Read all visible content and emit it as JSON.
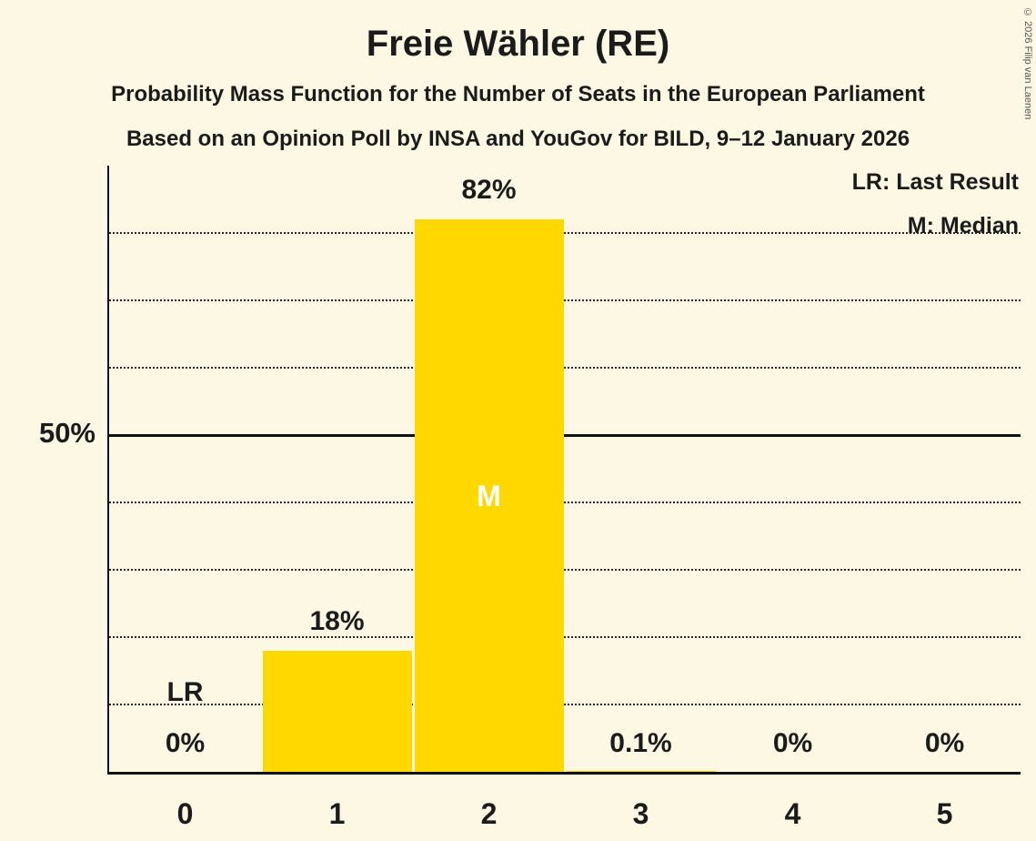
{
  "page": {
    "background": "#FCF8E3",
    "copyright": "© 2026 Filip van Laenen"
  },
  "header": {
    "title": "Freie Wähler (RE)",
    "subtitle1": "Probability Mass Function for the Number of Seats in the European Parliament",
    "subtitle2": "Based on an Opinion Poll by INSA and YouGov for BILD, 9–12 January 2026"
  },
  "legend": {
    "lr": "LR: Last Result",
    "m": "M: Median"
  },
  "chart_data": {
    "type": "bar",
    "title": "Freie Wähler (RE)",
    "categories": [
      "0",
      "1",
      "2",
      "3",
      "4",
      "5"
    ],
    "values": [
      0,
      18,
      82,
      0.1,
      0,
      0
    ],
    "value_labels": [
      "0%",
      "18%",
      "82%",
      "0.1%",
      "0%",
      "0%"
    ],
    "ylim": [
      0,
      90
    ],
    "y_tick": {
      "value": 50,
      "label": "50%"
    },
    "gridlines_pct": [
      10,
      20,
      30,
      40,
      50,
      60,
      70,
      80
    ],
    "solid_line_pct": 50,
    "grid_style": "dotted",
    "legend_position": "top-right",
    "bar_color": "#FFD800",
    "annotations": [
      {
        "text": "LR",
        "category_index": 0,
        "meaning": "last-result"
      },
      {
        "text": "M",
        "category_index": 2,
        "meaning": "median"
      }
    ]
  }
}
